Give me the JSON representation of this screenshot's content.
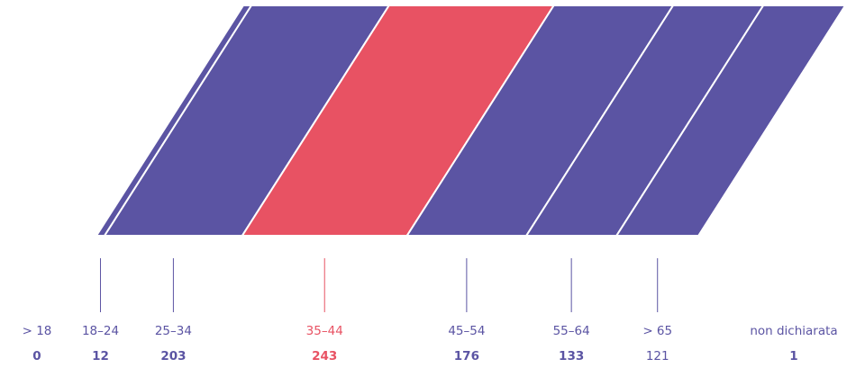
{
  "colors": {
    "base": "#5b54a3",
    "highlight": "#e85263",
    "separator": "#ffffff"
  },
  "chart_data": {
    "type": "bar",
    "orientation": "stacked-horizontal-skewed",
    "categories": [
      "> 18",
      "18–24",
      "25–34",
      "35–44",
      "45–54",
      "55–64",
      "> 65",
      "non dichiarata"
    ],
    "values": [
      0,
      12,
      203,
      243,
      176,
      133,
      121,
      1
    ],
    "value_labels": [
      "0",
      "12",
      "203",
      "243",
      "176",
      "133",
      "121",
      "1"
    ],
    "highlight_category": "35–44",
    "bold_values": [
      true,
      true,
      true,
      true,
      true,
      true,
      false,
      true
    ],
    "title": "",
    "xlabel": "",
    "ylabel": "",
    "legend": "none",
    "grid": false
  }
}
